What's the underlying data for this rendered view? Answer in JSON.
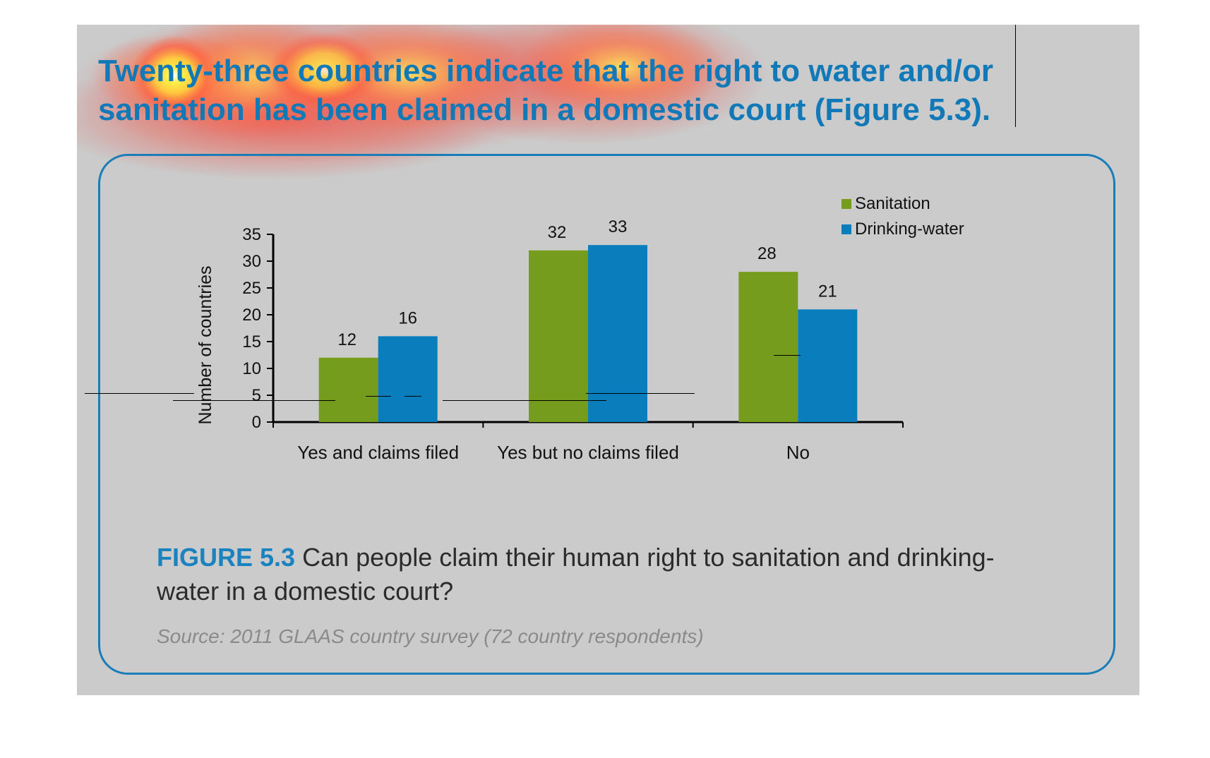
{
  "headline": "Twenty-three countries indicate that the right to water and/or sanitation has been claimed in a domestic court (Figure 5.3).",
  "figure": {
    "label": "FIGURE 5.3",
    "text": "Can people claim their human right to sanitation and drinking-water in a domestic court?",
    "source": "Source: 2011 GLAAS country survey (72 country respondents)"
  },
  "colors": {
    "sanitation": "#769c1d",
    "drinking_water": "#0a7ebd",
    "headline": "#1279b8",
    "frame": "#1a7db7",
    "background": "#cbcbcb"
  },
  "chart_data": {
    "type": "bar",
    "categories": [
      "Yes and claims filed",
      "Yes but no claims filed",
      "No"
    ],
    "series": [
      {
        "name": "Sanitation",
        "values": [
          12,
          32,
          28
        ],
        "color": "#769c1d"
      },
      {
        "name": "Drinking-water",
        "values": [
          16,
          33,
          21
        ],
        "color": "#0a7ebd"
      }
    ],
    "ylabel": "Number of countries",
    "ylim": [
      0,
      35
    ],
    "yticks": [
      0,
      5,
      10,
      15,
      20,
      25,
      30,
      35
    ],
    "grid": false,
    "legend": "top-right",
    "data_labels": true
  },
  "overlay": {
    "heatmap": "attention-heatmap-over-headline"
  }
}
